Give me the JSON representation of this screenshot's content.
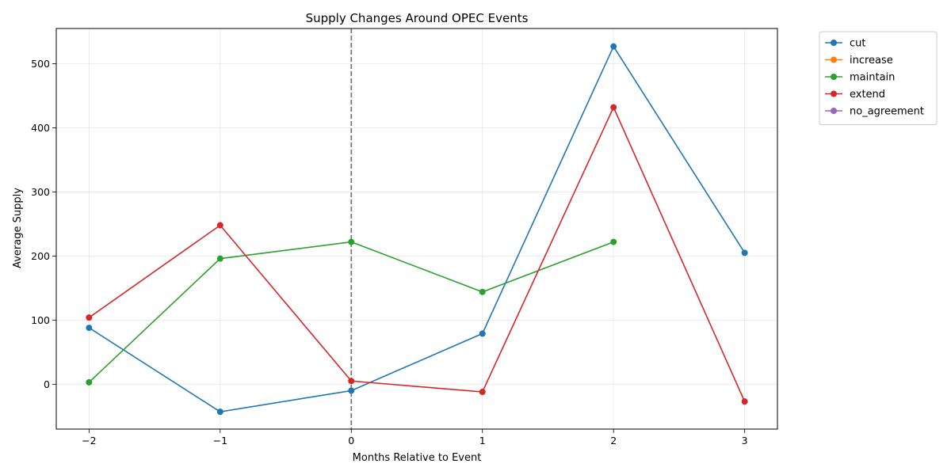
{
  "chart_data": {
    "type": "line",
    "title": "Supply Changes Around OPEC Events",
    "xlabel": "Months Relative to Event",
    "ylabel": "Average Supply",
    "xlim": [
      -2.25,
      3.25
    ],
    "ylim": [
      -70,
      555
    ],
    "xticks": [
      -2,
      -1,
      0,
      1,
      2,
      3
    ],
    "xtick_labels": [
      "−2",
      "−1",
      "0",
      "1",
      "2",
      "3"
    ],
    "yticks": [
      0,
      100,
      200,
      300,
      400,
      500
    ],
    "ytick_labels": [
      "0",
      "100",
      "200",
      "300",
      "400",
      "500"
    ],
    "grid": true,
    "legend_position": "outside-top-right",
    "event_line_x": 0,
    "series": [
      {
        "name": "cut",
        "color": "#1f77b4",
        "x": [
          -2,
          -1,
          0,
          1,
          2,
          3
        ],
        "y": [
          88,
          -43,
          -10,
          79,
          527,
          205
        ]
      },
      {
        "name": "increase",
        "color": "#ff7f0e",
        "x": [],
        "y": []
      },
      {
        "name": "maintain",
        "color": "#2ca02c",
        "x": [
          -2,
          -1,
          0,
          1,
          2
        ],
        "y": [
          3,
          196,
          222,
          144,
          222
        ]
      },
      {
        "name": "extend",
        "color": "#d62728",
        "x": [
          -2,
          -1,
          0,
          1,
          2,
          3
        ],
        "y": [
          104,
          248,
          5,
          -12,
          432,
          -27
        ]
      },
      {
        "name": "no_agreement",
        "color": "#9467bd",
        "x": [],
        "y": []
      }
    ]
  }
}
